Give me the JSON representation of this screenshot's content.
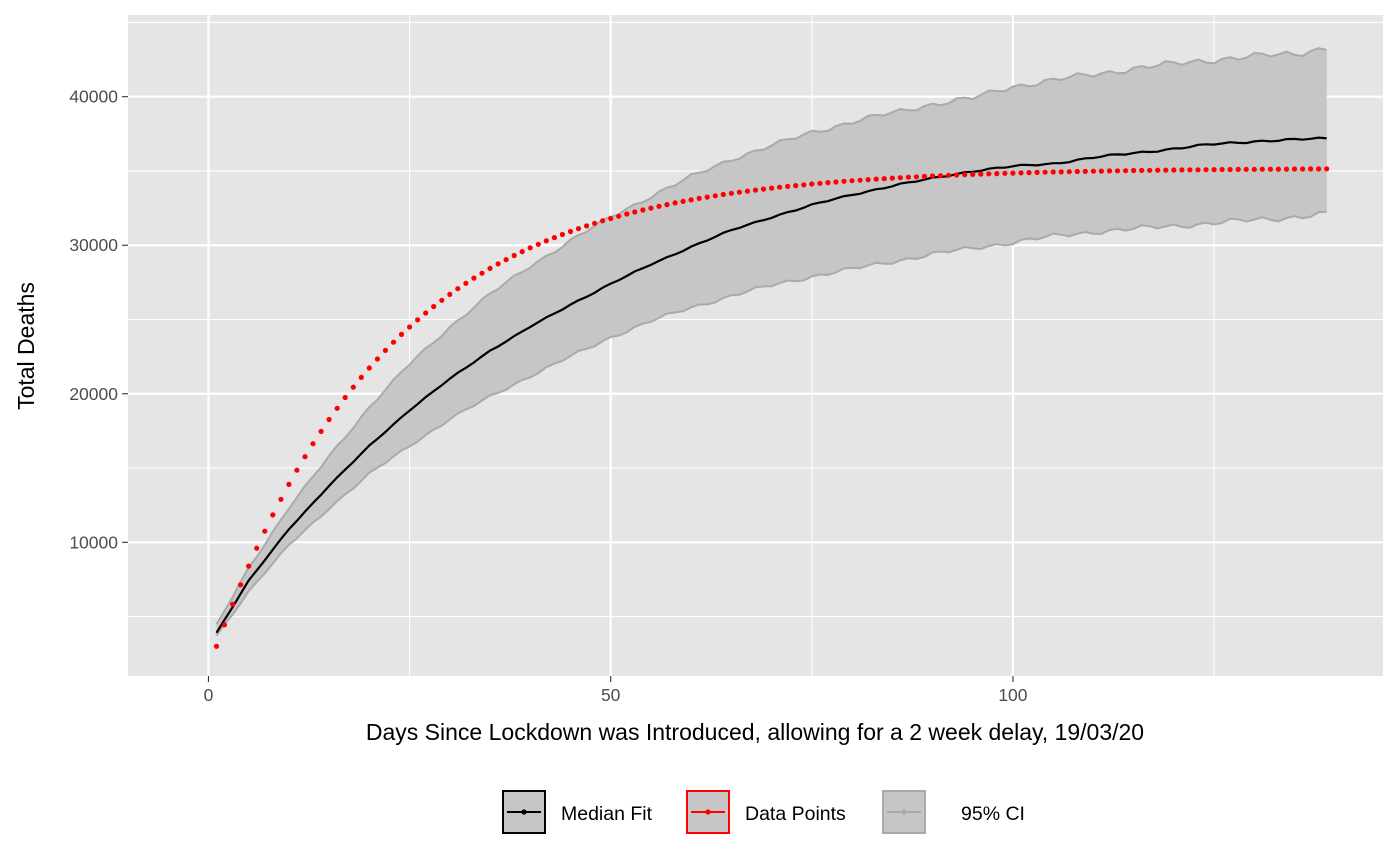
{
  "chart_data": {
    "type": "line",
    "title": "",
    "xlabel": "Days Since Lockdown was Introduced, allowing for a 2 week delay, 19/03/20",
    "ylabel": "Total Deaths",
    "xlim": [
      -10,
      146
    ],
    "ylim": [
      1000,
      45500
    ],
    "x_ticks": [
      0,
      50,
      100
    ],
    "x_tick_labels": [
      "0",
      "50",
      "100"
    ],
    "x_minor_ticks": [
      25,
      75,
      125
    ],
    "y_ticks": [
      10000,
      20000,
      30000,
      40000
    ],
    "y_tick_labels": [
      "10000",
      "20000",
      "30000",
      "40000"
    ],
    "y_minor_ticks": [
      5000,
      15000,
      25000,
      35000,
      45000
    ],
    "grid": true,
    "legend_position": "bottom",
    "colors": {
      "panel_bg": "#e5e5e5",
      "grid": "#ffffff",
      "median": "#000000",
      "data": "#ff0000",
      "ci_fill": "#c6c6c6",
      "ci_line": "#aaaaaa",
      "tick_text": "#4d4d4d",
      "label_text": "#000000"
    },
    "x_range": [
      1,
      139
    ],
    "series": [
      {
        "name": "Median Fit",
        "kind": "line",
        "x": [
          1,
          5,
          10,
          15,
          20,
          25,
          30,
          35,
          40,
          45,
          50,
          55,
          60,
          65,
          70,
          75,
          80,
          85,
          90,
          95,
          100,
          105,
          110,
          115,
          120,
          125,
          130,
          135,
          139
        ],
        "y": [
          3900,
          7400,
          10900,
          13800,
          16500,
          18900,
          21000,
          22900,
          24500,
          26000,
          27400,
          28700,
          29900,
          31000,
          31900,
          32700,
          33400,
          34000,
          34500,
          35000,
          35300,
          35500,
          35900,
          36200,
          36500,
          36800,
          37000,
          37100,
          37200
        ]
      },
      {
        "name": "Data Points",
        "kind": "points",
        "model": {
          "start": 3000,
          "plateau": 35200,
          "rate": 0.0459,
          "x_start": 1,
          "x_end": 139
        }
      },
      {
        "name": "95% CI",
        "kind": "ribbon",
        "x": [
          1,
          5,
          10,
          15,
          20,
          25,
          30,
          35,
          40,
          45,
          50,
          55,
          60,
          65,
          70,
          75,
          80,
          85,
          90,
          95,
          100,
          105,
          110,
          115,
          120,
          125,
          130,
          135,
          139
        ],
        "upper": [
          4400,
          8300,
          12300,
          15800,
          19100,
          22000,
          24500,
          26700,
          28600,
          30300,
          31900,
          33300,
          34600,
          35800,
          36700,
          37600,
          38300,
          38900,
          39500,
          39900,
          40700,
          41100,
          41500,
          41900,
          42200,
          42500,
          42700,
          42900,
          43300
        ],
        "lower": [
          3700,
          6700,
          9800,
          12300,
          14600,
          16500,
          18300,
          19800,
          21200,
          22500,
          23800,
          24900,
          25800,
          26600,
          27300,
          27900,
          28400,
          28900,
          29400,
          29800,
          30200,
          30600,
          30900,
          31100,
          31300,
          31500,
          31700,
          31900,
          32100
        ]
      }
    ]
  }
}
